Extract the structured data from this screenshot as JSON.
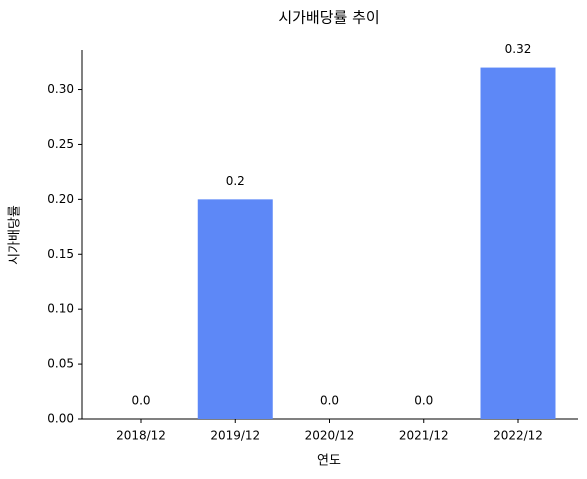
{
  "chart_data": {
    "type": "bar",
    "title": "시가배당률 추이",
    "x_label": "연도",
    "y_label": "시가배당률",
    "categories": [
      "2018/12",
      "2019/12",
      "2020/12",
      "2021/12",
      "2022/12"
    ],
    "values": [
      0,
      0.2,
      0,
      0,
      0.32
    ],
    "value_labels": [
      "0.0",
      "0.2",
      "0.0",
      "0.0",
      "0.32"
    ],
    "color": "#5d88f7",
    "ylim": [
      0,
      0.336
    ],
    "yticks": [
      {
        "value": 0,
        "label": "0.00"
      },
      {
        "value": 0.05,
        "label": "0.05"
      },
      {
        "value": 0.1,
        "label": "0.10"
      },
      {
        "value": 0.15,
        "label": "0.15"
      },
      {
        "value": 0.2,
        "label": "0.20"
      },
      {
        "value": 0.25,
        "label": "0.25"
      },
      {
        "value": 0.3,
        "label": "0.30"
      }
    ],
    "grid": false
  }
}
